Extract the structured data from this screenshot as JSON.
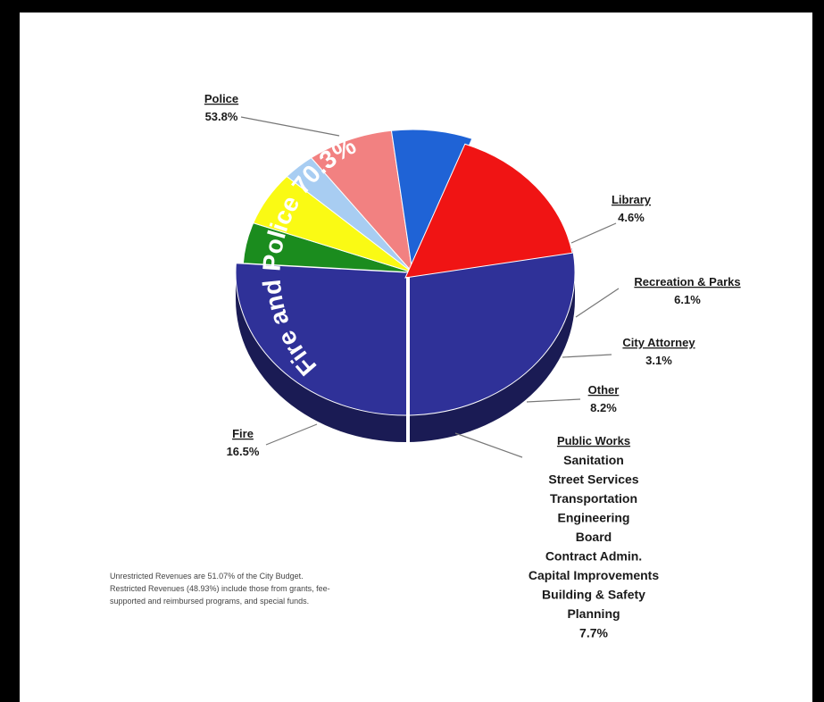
{
  "chart_data": {
    "type": "pie",
    "slices": [
      {
        "label": "Police",
        "value": 53.8,
        "value_label": "53.8%",
        "color": "#2f3198"
      },
      {
        "label": "Library",
        "value": 4.6,
        "value_label": "4.6%",
        "color": "#1b8c1e"
      },
      {
        "label": "Recreation & Parks",
        "value": 6.1,
        "value_label": "6.1%",
        "color": "#fafa14"
      },
      {
        "label": "City Attorney",
        "value": 3.1,
        "value_label": "3.1%",
        "color": "#a8cdf2"
      },
      {
        "label": "Other",
        "value": 8.2,
        "value_label": "8.2%",
        "color": "#f28181"
      },
      {
        "label": "Public Works",
        "value": 7.7,
        "value_label": "7.7%",
        "color": "#1f63d6"
      },
      {
        "label": "Fire",
        "value": 16.5,
        "value_label": "16.5%",
        "color": "#f01414"
      }
    ],
    "group_annotation": "Fire and Police 70.3%",
    "public_works_items": [
      "Sanitation",
      "Street Services",
      "Transportation",
      "Engineering",
      "Board",
      "Contract Admin.",
      "Capital Improvements",
      "Building & Safety",
      "Planning"
    ]
  },
  "footnote": {
    "line1": "Unrestricted Revenues are 51.07% of the City Budget.",
    "line2": "Restricted Revenues (48.93%) include those from grants, fee-",
    "line3": "supported and reimbursed programs, and special funds."
  }
}
